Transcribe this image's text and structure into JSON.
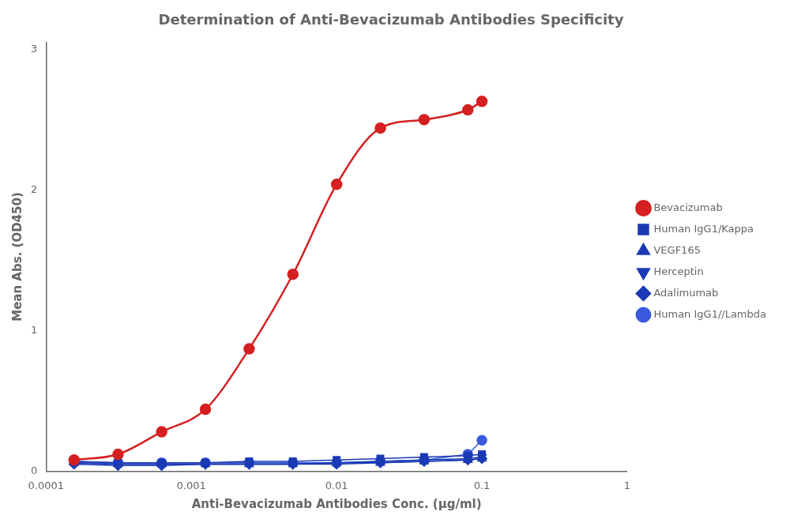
{
  "chart_data": {
    "type": "line",
    "title": "Determination of Anti-Bevacizumab Antibodies Specificity",
    "xlabel": "Anti-Bevacizumab Antibodies Conc. (μg/ml)",
    "ylabel": "Mean Abs. (OD450)",
    "log": "x",
    "xlim": [
      0.0001,
      1.0
    ],
    "xticks": [
      0.0001,
      0.001,
      0.01,
      0.1,
      1
    ],
    "ylim": [
      0.0,
      3.05
    ],
    "yticks": [
      0,
      1,
      2,
      3
    ],
    "grid": false,
    "legend": "right",
    "x": [
      0.000156,
      0.000313,
      0.000625,
      0.00125,
      0.0025,
      0.005,
      0.01,
      0.02,
      0.04,
      0.08,
      0.1
    ],
    "series": [
      {
        "name": "Bevacizumab",
        "color": "#d42020",
        "marker": "circle",
        "line_style": "smooth",
        "values": [
          0.08,
          0.12,
          0.28,
          0.44,
          0.87,
          1.4,
          2.04,
          2.44,
          2.5,
          2.57,
          2.63
        ]
      },
      {
        "name": "Human IgG1/Kappa",
        "color": "#1a3ab5",
        "marker": "square",
        "line_style": "solid",
        "values": [
          0.07,
          0.06,
          0.06,
          0.06,
          0.07,
          0.07,
          0.08,
          0.09,
          0.1,
          0.11,
          0.12
        ]
      },
      {
        "name": "VEGF165",
        "color": "#1a3ab5",
        "marker": "triangle-up",
        "line_style": "solid",
        "values": [
          0.06,
          0.05,
          0.05,
          0.05,
          0.05,
          0.05,
          0.06,
          0.06,
          0.07,
          0.08,
          0.09
        ]
      },
      {
        "name": "Herceptin",
        "color": "#1a3ab5",
        "marker": "triangle-down",
        "line_style": "solid",
        "values": [
          0.06,
          0.05,
          0.05,
          0.05,
          0.05,
          0.05,
          0.06,
          0.07,
          0.08,
          0.09,
          0.1
        ]
      },
      {
        "name": "Adalimumab",
        "color": "#1a3ab5",
        "marker": "diamond",
        "line_style": "solid",
        "values": [
          0.05,
          0.04,
          0.04,
          0.05,
          0.05,
          0.05,
          0.05,
          0.06,
          0.07,
          0.08,
          0.09
        ]
      },
      {
        "name": "Human IgG1//Lambda",
        "color": "#3a5add",
        "marker": "circle",
        "line_style": "solid",
        "values": [
          0.07,
          0.06,
          0.06,
          0.06,
          0.06,
          0.06,
          0.06,
          0.07,
          0.08,
          0.12,
          0.22
        ]
      }
    ]
  }
}
